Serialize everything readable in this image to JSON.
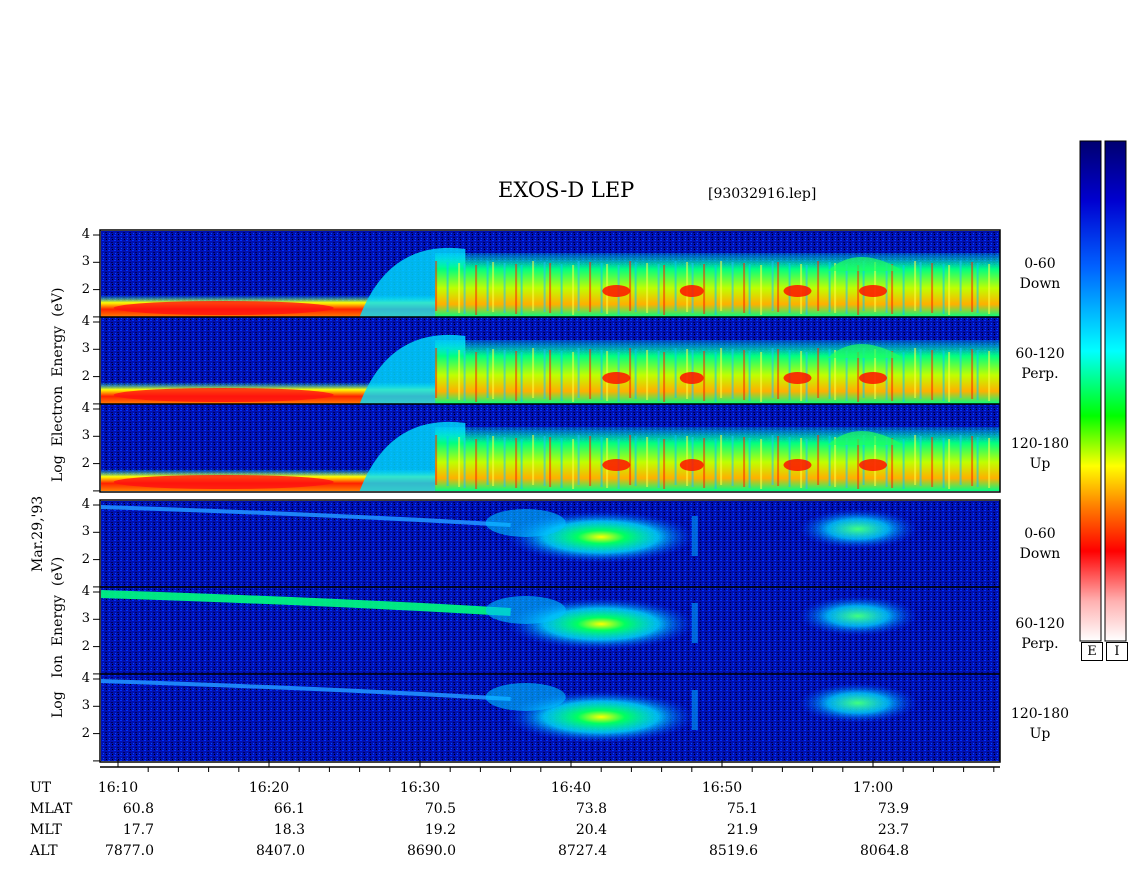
{
  "header": {
    "title": "EXOS-D LEP",
    "file": "[93032916.lep]"
  },
  "date_label": "Mar.29,'93",
  "electron_axis_label": [
    "Log",
    "Electron",
    "Energy",
    "(eV)"
  ],
  "ion_axis_label": [
    "Log",
    "Ion",
    "Energy",
    "(eV)"
  ],
  "panels": [
    {
      "species": "electron",
      "pitch": "0-60",
      "dir": "Down"
    },
    {
      "species": "electron",
      "pitch": "60-120",
      "dir": "Perp."
    },
    {
      "species": "electron",
      "pitch": "120-180",
      "dir": "Up"
    },
    {
      "species": "ion",
      "pitch": "0-60",
      "dir": "Down"
    },
    {
      "species": "ion",
      "pitch": "60-120",
      "dir": "Perp."
    },
    {
      "species": "ion",
      "pitch": "120-180",
      "dir": "Up"
    }
  ],
  "y_ticks": [
    "4",
    "3",
    "2"
  ],
  "colorbar": {
    "labels": [
      "E",
      "I"
    ]
  },
  "orbit_table": {
    "row_labels": [
      "UT",
      "MLAT",
      "MLT",
      "ALT"
    ],
    "columns": [
      {
        "ut": "16:10",
        "mlat": "60.8",
        "mlt": "17.7",
        "alt": "7877.0"
      },
      {
        "ut": "16:20",
        "mlat": "66.1",
        "mlt": "18.3",
        "alt": "8407.0"
      },
      {
        "ut": "16:30",
        "mlat": "70.5",
        "mlt": "19.2",
        "alt": "8690.0"
      },
      {
        "ut": "16:40",
        "mlat": "73.8",
        "mlt": "20.4",
        "alt": "8727.4"
      },
      {
        "ut": "16:50",
        "mlat": "75.1",
        "mlt": "21.9",
        "alt": "8519.6"
      },
      {
        "ut": "17:00",
        "mlat": "73.9",
        "mlt": "23.7",
        "alt": "8064.8"
      }
    ]
  },
  "chart_data": {
    "type": "heatmap",
    "x_range_ut": [
      "16:08",
      "17:09"
    ],
    "x_ticks": [
      "16:10",
      "16:20",
      "16:30",
      "16:40",
      "16:50",
      "17:00"
    ],
    "y_range_log_eV": [
      1,
      4.2
    ],
    "colormap": [
      "#000080",
      "#0000ff",
      "#00ffff",
      "#00ff00",
      "#ffff00",
      "#ff8000",
      "#ff0000",
      "#ffe0e0"
    ],
    "electron": {
      "low_energy_band_log_eV": 1.6,
      "plasma_sheet_onset_ut": "16:31",
      "inverted_v_peak_log_eV": 2.3
    },
    "ion": {
      "drifting_band_start_log_eV": 3.9,
      "enhanced_flux_ut": [
        "16:35",
        "16:48"
      ],
      "second_feature_ut": [
        "16:55",
        "17:03"
      ]
    }
  }
}
